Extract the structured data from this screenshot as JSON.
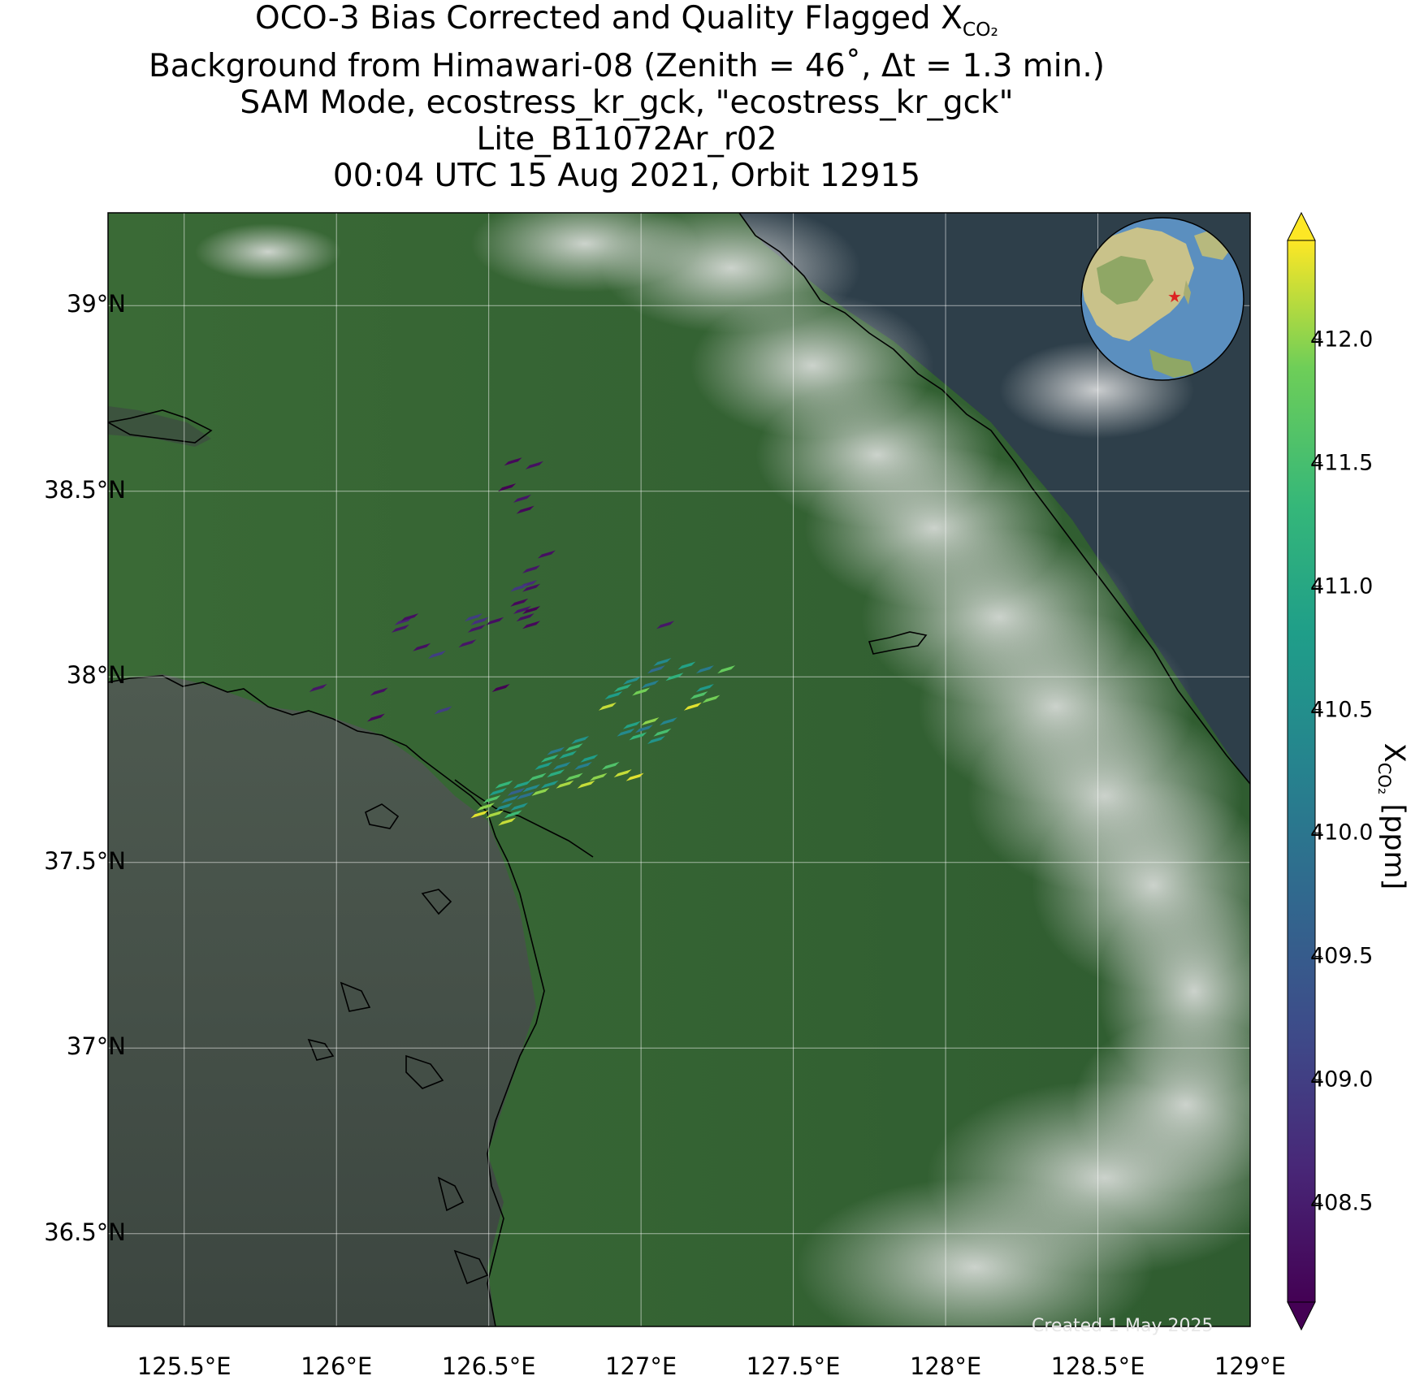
{
  "title": {
    "line1_prefix": "OCO-3 Bias Corrected and Quality Flagged X",
    "line1_subscript": "CO₂",
    "line2": "Background from Himawari-08 (Zenith = 46˚, Δt =  1.3 min.)",
    "line3": "SAM Mode, ecostress_kr_gck, \"ecostress_kr_gck\"",
    "line4": "Lite_B11072Ar_r02",
    "line5": "00:04 UTC 15 Aug 2021, Orbit 12915"
  },
  "map": {
    "lon_range": [
      125.25,
      129.0
    ],
    "lat_range": [
      36.25,
      39.25
    ],
    "lon_ticks": [
      125.5,
      126.0,
      126.5,
      127.0,
      127.5,
      128.0,
      128.5,
      129.0
    ],
    "lon_tick_labels": [
      "125.5°E",
      "126°E",
      "126.5°E",
      "127°E",
      "127.5°E",
      "128°E",
      "128.5°E",
      "129°E"
    ],
    "lat_ticks": [
      36.5,
      37.0,
      37.5,
      38.0,
      38.5,
      39.0
    ],
    "lat_tick_labels": [
      "36.5°N",
      "37°N",
      "37.5°N",
      "38°N",
      "38.5°N",
      "39°N"
    ],
    "gridlines": true,
    "inset_globe": {
      "center_lon": 127,
      "center_lat": 37.8,
      "marker": "red star"
    },
    "created_text": "Created 1 May 2025"
  },
  "chart_data": {
    "type": "scatter",
    "title": "OCO-3 Bias Corrected and Quality Flagged XCO₂",
    "xlabel": "",
    "ylabel": "",
    "xlim": [
      125.25,
      129.0
    ],
    "ylim": [
      36.25,
      39.25
    ],
    "colorbar": {
      "label_prefix": "X",
      "label_subscript": "CO₂",
      "label_suffix": " [ppm]",
      "range": [
        408.1,
        412.4
      ],
      "ticks": [
        408.5,
        409.0,
        409.5,
        410.0,
        410.5,
        411.0,
        411.5,
        412.0
      ],
      "tick_labels": [
        "408.5",
        "409.0",
        "409.5",
        "410.0",
        "410.5",
        "411.0",
        "411.5",
        "412.0"
      ],
      "colormap": "viridis",
      "extend": "both"
    },
    "points": [
      {
        "lon": 126.58,
        "lat": 38.58,
        "value": 408.2
      },
      {
        "lon": 126.56,
        "lat": 38.51,
        "value": 408.1
      },
      {
        "lon": 126.65,
        "lat": 38.57,
        "value": 408.3
      },
      {
        "lon": 126.61,
        "lat": 38.48,
        "value": 408.4
      },
      {
        "lon": 126.62,
        "lat": 38.45,
        "value": 408.2
      },
      {
        "lon": 126.69,
        "lat": 38.33,
        "value": 408.3
      },
      {
        "lon": 126.64,
        "lat": 38.29,
        "value": 408.4
      },
      {
        "lon": 126.63,
        "lat": 38.25,
        "value": 408.7
      },
      {
        "lon": 126.6,
        "lat": 38.24,
        "value": 408.9
      },
      {
        "lon": 126.64,
        "lat": 38.24,
        "value": 408.3
      },
      {
        "lon": 126.6,
        "lat": 38.2,
        "value": 408.2
      },
      {
        "lon": 126.61,
        "lat": 38.18,
        "value": 408.4
      },
      {
        "lon": 126.64,
        "lat": 38.18,
        "value": 408.1
      },
      {
        "lon": 126.62,
        "lat": 38.16,
        "value": 408.3
      },
      {
        "lon": 126.64,
        "lat": 38.14,
        "value": 408.2
      },
      {
        "lon": 126.22,
        "lat": 38.15,
        "value": 408.6
      },
      {
        "lon": 126.24,
        "lat": 38.16,
        "value": 408.3
      },
      {
        "lon": 126.21,
        "lat": 38.13,
        "value": 408.4
      },
      {
        "lon": 126.45,
        "lat": 38.16,
        "value": 409.0
      },
      {
        "lon": 126.47,
        "lat": 38.15,
        "value": 408.8
      },
      {
        "lon": 126.52,
        "lat": 38.15,
        "value": 408.3
      },
      {
        "lon": 126.46,
        "lat": 38.13,
        "value": 408.4
      },
      {
        "lon": 126.28,
        "lat": 38.08,
        "value": 408.3
      },
      {
        "lon": 126.33,
        "lat": 38.06,
        "value": 409.0
      },
      {
        "lon": 126.43,
        "lat": 38.09,
        "value": 408.4
      },
      {
        "lon": 127.08,
        "lat": 38.14,
        "value": 408.4
      },
      {
        "lon": 125.94,
        "lat": 37.97,
        "value": 408.4
      },
      {
        "lon": 126.14,
        "lat": 37.96,
        "value": 408.3
      },
      {
        "lon": 126.54,
        "lat": 37.97,
        "value": 408.1
      },
      {
        "lon": 126.13,
        "lat": 37.89,
        "value": 408.2
      },
      {
        "lon": 126.35,
        "lat": 37.91,
        "value": 409.0
      },
      {
        "lon": 126.47,
        "lat": 37.63,
        "value": 412.3
      },
      {
        "lon": 126.49,
        "lat": 37.65,
        "value": 412.0
      },
      {
        "lon": 126.51,
        "lat": 37.67,
        "value": 411.6
      },
      {
        "lon": 126.53,
        "lat": 37.69,
        "value": 410.8
      },
      {
        "lon": 126.55,
        "lat": 37.71,
        "value": 411.3
      },
      {
        "lon": 126.52,
        "lat": 37.63,
        "value": 412.1
      },
      {
        "lon": 126.55,
        "lat": 37.65,
        "value": 410.5
      },
      {
        "lon": 126.57,
        "lat": 37.67,
        "value": 410.2
      },
      {
        "lon": 126.59,
        "lat": 37.69,
        "value": 409.6
      },
      {
        "lon": 126.61,
        "lat": 37.71,
        "value": 410.9
      },
      {
        "lon": 126.56,
        "lat": 37.61,
        "value": 412.2
      },
      {
        "lon": 126.58,
        "lat": 37.63,
        "value": 411.4
      },
      {
        "lon": 126.6,
        "lat": 37.65,
        "value": 410.6
      },
      {
        "lon": 126.62,
        "lat": 37.68,
        "value": 409.9
      },
      {
        "lon": 126.64,
        "lat": 37.7,
        "value": 410.4
      },
      {
        "lon": 126.66,
        "lat": 37.73,
        "value": 411.5
      },
      {
        "lon": 126.68,
        "lat": 37.76,
        "value": 410.8
      },
      {
        "lon": 126.7,
        "lat": 37.78,
        "value": 411.2
      },
      {
        "lon": 126.72,
        "lat": 37.8,
        "value": 410.1
      },
      {
        "lon": 126.67,
        "lat": 37.69,
        "value": 412.0
      },
      {
        "lon": 126.7,
        "lat": 37.71,
        "value": 410.7
      },
      {
        "lon": 126.72,
        "lat": 37.74,
        "value": 411.1
      },
      {
        "lon": 126.74,
        "lat": 37.76,
        "value": 410.3
      },
      {
        "lon": 126.76,
        "lat": 37.79,
        "value": 410.9
      },
      {
        "lon": 126.78,
        "lat": 37.81,
        "value": 411.4
      },
      {
        "lon": 126.8,
        "lat": 37.83,
        "value": 410.6
      },
      {
        "lon": 126.75,
        "lat": 37.71,
        "value": 412.1
      },
      {
        "lon": 126.78,
        "lat": 37.73,
        "value": 411.8
      },
      {
        "lon": 126.81,
        "lat": 37.76,
        "value": 410.2
      },
      {
        "lon": 126.83,
        "lat": 37.78,
        "value": 410.8
      },
      {
        "lon": 126.82,
        "lat": 37.71,
        "value": 412.2
      },
      {
        "lon": 126.86,
        "lat": 37.73,
        "value": 412.0
      },
      {
        "lon": 126.9,
        "lat": 37.76,
        "value": 411.6
      },
      {
        "lon": 126.94,
        "lat": 37.74,
        "value": 412.2
      },
      {
        "lon": 126.98,
        "lat": 37.73,
        "value": 412.3
      },
      {
        "lon": 126.95,
        "lat": 37.85,
        "value": 410.4
      },
      {
        "lon": 126.97,
        "lat": 37.87,
        "value": 410.9
      },
      {
        "lon": 126.99,
        "lat": 37.84,
        "value": 411.3
      },
      {
        "lon": 127.01,
        "lat": 37.86,
        "value": 410.1
      },
      {
        "lon": 127.03,
        "lat": 37.88,
        "value": 412.0
      },
      {
        "lon": 127.05,
        "lat": 37.83,
        "value": 410.6
      },
      {
        "lon": 127.07,
        "lat": 37.85,
        "value": 411.5
      },
      {
        "lon": 127.09,
        "lat": 37.88,
        "value": 410.3
      },
      {
        "lon": 126.89,
        "lat": 37.92,
        "value": 412.2
      },
      {
        "lon": 126.91,
        "lat": 37.95,
        "value": 410.8
      },
      {
        "lon": 126.94,
        "lat": 37.97,
        "value": 411.1
      },
      {
        "lon": 126.97,
        "lat": 37.99,
        "value": 410.5
      },
      {
        "lon": 127.0,
        "lat": 37.96,
        "value": 411.9
      },
      {
        "lon": 127.03,
        "lat": 37.98,
        "value": 410.2
      },
      {
        "lon": 127.05,
        "lat": 38.02,
        "value": 409.8
      },
      {
        "lon": 127.07,
        "lat": 38.04,
        "value": 410.4
      },
      {
        "lon": 127.11,
        "lat": 38.0,
        "value": 411.2
      },
      {
        "lon": 127.15,
        "lat": 38.03,
        "value": 410.9
      },
      {
        "lon": 127.17,
        "lat": 37.92,
        "value": 412.3
      },
      {
        "lon": 127.19,
        "lat": 37.95,
        "value": 411.6
      },
      {
        "lon": 127.21,
        "lat": 37.97,
        "value": 410.7
      },
      {
        "lon": 127.23,
        "lat": 37.94,
        "value": 411.9
      },
      {
        "lon": 127.21,
        "lat": 38.02,
        "value": 410.1
      },
      {
        "lon": 127.28,
        "lat": 38.02,
        "value": 411.8
      }
    ]
  }
}
